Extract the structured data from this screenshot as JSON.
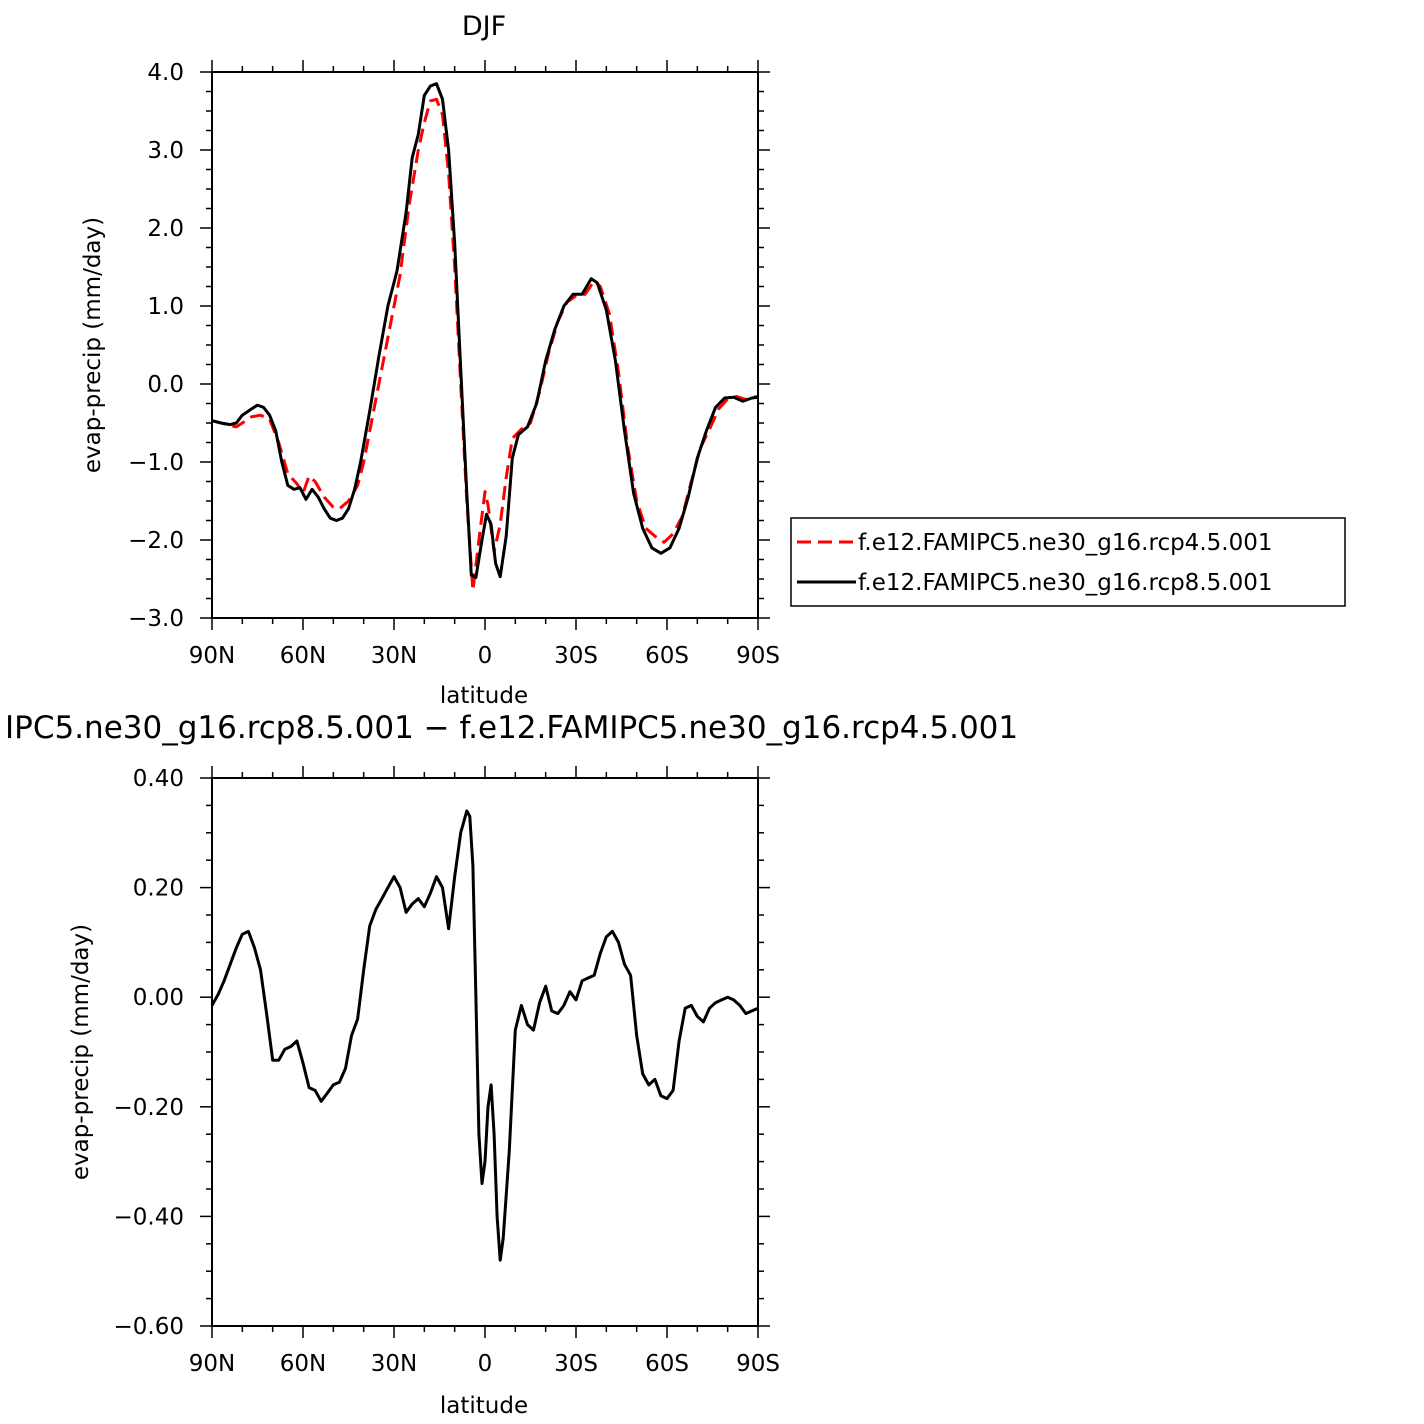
{
  "chart_data": [
    {
      "type": "line",
      "title": "DJF",
      "xlabel": "latitude",
      "ylabel": "evap-precip (mm/day)",
      "xlim": [
        -90,
        90
      ],
      "ylim": [
        -3.0,
        4.0
      ],
      "x_ticks": [
        -90,
        -60,
        -30,
        0,
        30,
        60,
        90
      ],
      "x_tick_labels": [
        "90N",
        "60N",
        "30N",
        "0",
        "30S",
        "60S",
        "90S"
      ],
      "y_ticks": [
        -3,
        -2,
        -1,
        0,
        1,
        2,
        3,
        4
      ],
      "y_tick_labels": [
        "−3.0",
        "−2.0",
        "−1.0",
        "0.0",
        "1.0",
        "2.0",
        "3.0",
        "4.0"
      ],
      "grid": false,
      "legend": "outside-right",
      "series": [
        {
          "name": "f.e12.FAMIPC5.ne30_g16.rcp4.5.001",
          "color": "#ff0000",
          "dash": "dashed",
          "points": [
            [
              -90,
              -0.47
            ],
            [
              -85,
              -0.52
            ],
            [
              -82,
              -0.55
            ],
            [
              -80,
              -0.5
            ],
            [
              -77,
              -0.42
            ],
            [
              -74,
              -0.4
            ],
            [
              -71,
              -0.45
            ],
            [
              -68,
              -0.75
            ],
            [
              -65,
              -1.15
            ],
            [
              -62,
              -1.28
            ],
            [
              -60,
              -1.4
            ],
            [
              -58,
              -1.18
            ],
            [
              -56,
              -1.25
            ],
            [
              -53,
              -1.45
            ],
            [
              -50,
              -1.58
            ],
            [
              -48,
              -1.6
            ],
            [
              -45,
              -1.5
            ],
            [
              -42,
              -1.3
            ],
            [
              -40,
              -1.0
            ],
            [
              -37,
              -0.4
            ],
            [
              -34,
              0.2
            ],
            [
              -31,
              0.8
            ],
            [
              -28,
              1.4
            ],
            [
              -25,
              2.3
            ],
            [
              -22,
              3.0
            ],
            [
              -20,
              3.35
            ],
            [
              -18,
              3.63
            ],
            [
              -16,
              3.65
            ],
            [
              -14,
              3.45
            ],
            [
              -12,
              2.7
            ],
            [
              -10,
              1.5
            ],
            [
              -8,
              0.0
            ],
            [
              -6,
              -1.5
            ],
            [
              -4,
              -2.65
            ],
            [
              -2,
              -2.0
            ],
            [
              0,
              -1.38
            ],
            [
              1,
              -1.55
            ],
            [
              3,
              -2.15
            ],
            [
              5,
              -1.8
            ],
            [
              7,
              -1.2
            ],
            [
              9,
              -0.7
            ],
            [
              12,
              -0.58
            ],
            [
              15,
              -0.5
            ],
            [
              18,
              -0.1
            ],
            [
              21,
              0.4
            ],
            [
              24,
              0.8
            ],
            [
              27,
              1.05
            ],
            [
              30,
              1.13
            ],
            [
              33,
              1.15
            ],
            [
              36,
              1.32
            ],
            [
              38,
              1.25
            ],
            [
              41,
              0.9
            ],
            [
              44,
              0.15
            ],
            [
              47,
              -0.8
            ],
            [
              50,
              -1.5
            ],
            [
              53,
              -1.85
            ],
            [
              56,
              -1.95
            ],
            [
              59,
              -2.03
            ],
            [
              62,
              -1.92
            ],
            [
              65,
              -1.7
            ],
            [
              68,
              -1.25
            ],
            [
              71,
              -0.82
            ],
            [
              74,
              -0.58
            ],
            [
              77,
              -0.32
            ],
            [
              80,
              -0.19
            ],
            [
              83,
              -0.16
            ],
            [
              86,
              -0.2
            ],
            [
              88,
              -0.17
            ],
            [
              90,
              -0.16
            ]
          ]
        },
        {
          "name": "f.e12.FAMIPC5.ne30_g16.rcp8.5.001",
          "color": "#000000",
          "dash": "solid",
          "points": [
            [
              -90,
              -0.47
            ],
            [
              -87,
              -0.5
            ],
            [
              -84,
              -0.52
            ],
            [
              -82,
              -0.5
            ],
            [
              -80,
              -0.4
            ],
            [
              -77,
              -0.32
            ],
            [
              -75,
              -0.27
            ],
            [
              -73,
              -0.3
            ],
            [
              -71,
              -0.4
            ],
            [
              -69,
              -0.6
            ],
            [
              -67,
              -1.0
            ],
            [
              -65,
              -1.3
            ],
            [
              -63,
              -1.35
            ],
            [
              -61,
              -1.33
            ],
            [
              -59,
              -1.48
            ],
            [
              -57,
              -1.35
            ],
            [
              -55,
              -1.45
            ],
            [
              -53,
              -1.6
            ],
            [
              -51,
              -1.72
            ],
            [
              -49,
              -1.75
            ],
            [
              -47,
              -1.72
            ],
            [
              -45,
              -1.6
            ],
            [
              -43,
              -1.35
            ],
            [
              -41,
              -1.0
            ],
            [
              -38,
              -0.35
            ],
            [
              -35,
              0.35
            ],
            [
              -32,
              1.0
            ],
            [
              -29,
              1.45
            ],
            [
              -26,
              2.2
            ],
            [
              -24,
              2.9
            ],
            [
              -22,
              3.2
            ],
            [
              -20,
              3.7
            ],
            [
              -18,
              3.82
            ],
            [
              -16,
              3.85
            ],
            [
              -14,
              3.65
            ],
            [
              -12,
              3.0
            ],
            [
              -10,
              1.8
            ],
            [
              -8,
              0.2
            ],
            [
              -6,
              -1.4
            ],
            [
              -4.5,
              -2.45
            ],
            [
              -3,
              -2.48
            ],
            [
              -1,
              -2.0
            ],
            [
              0.5,
              -1.67
            ],
            [
              2,
              -1.8
            ],
            [
              3.5,
              -2.3
            ],
            [
              5,
              -2.47
            ],
            [
              7,
              -1.95
            ],
            [
              9,
              -0.95
            ],
            [
              11,
              -0.65
            ],
            [
              14,
              -0.55
            ],
            [
              17,
              -0.25
            ],
            [
              20,
              0.3
            ],
            [
              23,
              0.7
            ],
            [
              26,
              1.0
            ],
            [
              29,
              1.15
            ],
            [
              32,
              1.15
            ],
            [
              35,
              1.35
            ],
            [
              37,
              1.3
            ],
            [
              40,
              0.95
            ],
            [
              43,
              0.3
            ],
            [
              46,
              -0.6
            ],
            [
              49,
              -1.4
            ],
            [
              52,
              -1.85
            ],
            [
              55,
              -2.1
            ],
            [
              58,
              -2.17
            ],
            [
              61,
              -2.1
            ],
            [
              64,
              -1.85
            ],
            [
              67,
              -1.45
            ],
            [
              70,
              -0.95
            ],
            [
              73,
              -0.6
            ],
            [
              76,
              -0.3
            ],
            [
              79,
              -0.18
            ],
            [
              82,
              -0.17
            ],
            [
              85,
              -0.22
            ],
            [
              88,
              -0.18
            ],
            [
              90,
              -0.17
            ]
          ]
        }
      ]
    },
    {
      "type": "line",
      "title": "IPC5.ne30_g16.rcp8.5.001 − f.e12.FAMIPC5.ne30_g16.rcp4.5.001",
      "xlabel": "latitude",
      "ylabel": "evap-precip (mm/day)",
      "xlim": [
        -90,
        90
      ],
      "ylim": [
        -0.6,
        0.4
      ],
      "x_ticks": [
        -90,
        -60,
        -30,
        0,
        30,
        60,
        90
      ],
      "x_tick_labels": [
        "90N",
        "60N",
        "30N",
        "0",
        "30S",
        "60S",
        "90S"
      ],
      "y_ticks": [
        -0.6,
        -0.4,
        -0.2,
        0.0,
        0.2,
        0.4
      ],
      "y_tick_labels": [
        "−0.60",
        "−0.40",
        "−0.20",
        "0.00",
        "0.20",
        "0.40"
      ],
      "grid": false,
      "series": [
        {
          "color": "#000000",
          "dash": "solid",
          "points": [
            [
              -90,
              -0.015
            ],
            [
              -88,
              0.005
            ],
            [
              -86,
              0.03
            ],
            [
              -84,
              0.06
            ],
            [
              -82,
              0.09
            ],
            [
              -80,
              0.115
            ],
            [
              -78,
              0.12
            ],
            [
              -76,
              0.09
            ],
            [
              -74,
              0.05
            ],
            [
              -72,
              -0.03
            ],
            [
              -70,
              -0.115
            ],
            [
              -68,
              -0.115
            ],
            [
              -66,
              -0.095
            ],
            [
              -64,
              -0.09
            ],
            [
              -62,
              -0.08
            ],
            [
              -60,
              -0.12
            ],
            [
              -58,
              -0.165
            ],
            [
              -56,
              -0.17
            ],
            [
              -54,
              -0.19
            ],
            [
              -52,
              -0.175
            ],
            [
              -50,
              -0.16
            ],
            [
              -48,
              -0.155
            ],
            [
              -46,
              -0.13
            ],
            [
              -44,
              -0.07
            ],
            [
              -42,
              -0.04
            ],
            [
              -40,
              0.05
            ],
            [
              -38,
              0.13
            ],
            [
              -36,
              0.16
            ],
            [
              -34,
              0.18
            ],
            [
              -32,
              0.2
            ],
            [
              -30,
              0.22
            ],
            [
              -28,
              0.2
            ],
            [
              -26,
              0.155
            ],
            [
              -24,
              0.17
            ],
            [
              -22,
              0.18
            ],
            [
              -20,
              0.165
            ],
            [
              -18,
              0.19
            ],
            [
              -16,
              0.22
            ],
            [
              -14,
              0.2
            ],
            [
              -12,
              0.125
            ],
            [
              -10,
              0.22
            ],
            [
              -8,
              0.3
            ],
            [
              -6,
              0.34
            ],
            [
              -5,
              0.33
            ],
            [
              -4,
              0.24
            ],
            [
              -3,
              0.0
            ],
            [
              -2,
              -0.25
            ],
            [
              -1,
              -0.34
            ],
            [
              0,
              -0.3
            ],
            [
              1,
              -0.2
            ],
            [
              2,
              -0.16
            ],
            [
              3,
              -0.25
            ],
            [
              4,
              -0.4
            ],
            [
              5,
              -0.48
            ],
            [
              6,
              -0.44
            ],
            [
              8,
              -0.28
            ],
            [
              10,
              -0.06
            ],
            [
              12,
              -0.015
            ],
            [
              14,
              -0.05
            ],
            [
              16,
              -0.06
            ],
            [
              18,
              -0.01
            ],
            [
              20,
              0.02
            ],
            [
              22,
              -0.025
            ],
            [
              24,
              -0.03
            ],
            [
              26,
              -0.015
            ],
            [
              28,
              0.01
            ],
            [
              30,
              -0.005
            ],
            [
              32,
              0.03
            ],
            [
              34,
              0.035
            ],
            [
              36,
              0.04
            ],
            [
              38,
              0.08
            ],
            [
              40,
              0.11
            ],
            [
              42,
              0.12
            ],
            [
              44,
              0.1
            ],
            [
              46,
              0.06
            ],
            [
              48,
              0.04
            ],
            [
              50,
              -0.07
            ],
            [
              52,
              -0.14
            ],
            [
              54,
              -0.16
            ],
            [
              56,
              -0.15
            ],
            [
              58,
              -0.18
            ],
            [
              60,
              -0.185
            ],
            [
              62,
              -0.17
            ],
            [
              64,
              -0.08
            ],
            [
              66,
              -0.02
            ],
            [
              68,
              -0.015
            ],
            [
              70,
              -0.035
            ],
            [
              72,
              -0.045
            ],
            [
              74,
              -0.02
            ],
            [
              76,
              -0.01
            ],
            [
              78,
              -0.005
            ],
            [
              80,
              0.0
            ],
            [
              82,
              -0.005
            ],
            [
              84,
              -0.015
            ],
            [
              86,
              -0.03
            ],
            [
              88,
              -0.025
            ],
            [
              90,
              -0.02
            ]
          ]
        }
      ]
    }
  ]
}
